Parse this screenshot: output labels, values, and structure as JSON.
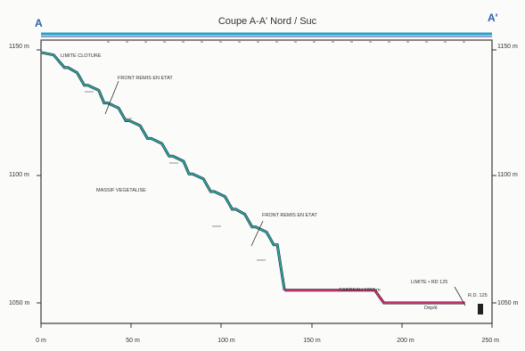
{
  "header": {
    "title": "Coupe A-A' Nord / Suc",
    "label_left": "A",
    "label_right": "A'"
  },
  "axes": {
    "y_ticks_left": [
      "1150 m",
      "1100 m",
      "1050 m"
    ],
    "y_ticks_right": [
      "1150 m",
      "1100 m",
      "1050 m"
    ],
    "x_ticks": [
      "0 m",
      "50 m",
      "100 m",
      "150 m",
      "200 m",
      "250 m"
    ]
  },
  "labels": {
    "limite_cloture": "LIMITE CLOTURE",
    "front_upper": "FRONT REMIS EN ETAT",
    "massif": "MASSIF VEGETALISE",
    "front_lower": "FRONT REMIS EN ETAT",
    "carreau": "CARREAU 1050 m",
    "limite_rd": "LIMITE • RD 125",
    "depot": "Dépôt",
    "rd": "R.D. 125"
  },
  "chart_data": {
    "type": "line",
    "xlim": [
      0,
      250
    ],
    "ylim": [
      1045,
      1150
    ],
    "series": [
      {
        "x": [
          0,
          7,
          13,
          15,
          20,
          24,
          26,
          32,
          35,
          37,
          43,
          47,
          49,
          55,
          59,
          61,
          67,
          71,
          73,
          79,
          82,
          84,
          90,
          94,
          96,
          102,
          106,
          108,
          113,
          117,
          119,
          125,
          129,
          131,
          135
        ],
        "y": [
          1149,
          1148,
          1143,
          1143,
          1141,
          1136,
          1136,
          1134,
          1129,
          1129,
          1127,
          1122,
          1122,
          1120,
          1115,
          1115,
          1113,
          1108,
          1108,
          1106,
          1101,
          1101,
          1099,
          1094,
          1094,
          1092,
          1087,
          1087,
          1085,
          1080,
          1080,
          1078,
          1073,
          1073,
          1055
        ]
      },
      {
        "x": [
          135,
          185,
          190,
          235
        ],
        "y": [
          1055,
          1055,
          1050,
          1050
        ]
      }
    ]
  },
  "colors": {
    "slope": "#2aa6a0",
    "platform": "#d9306f",
    "frame": "#3a3a3a",
    "title_bar": "#1fa3c8",
    "label": "#2c5fb0"
  }
}
